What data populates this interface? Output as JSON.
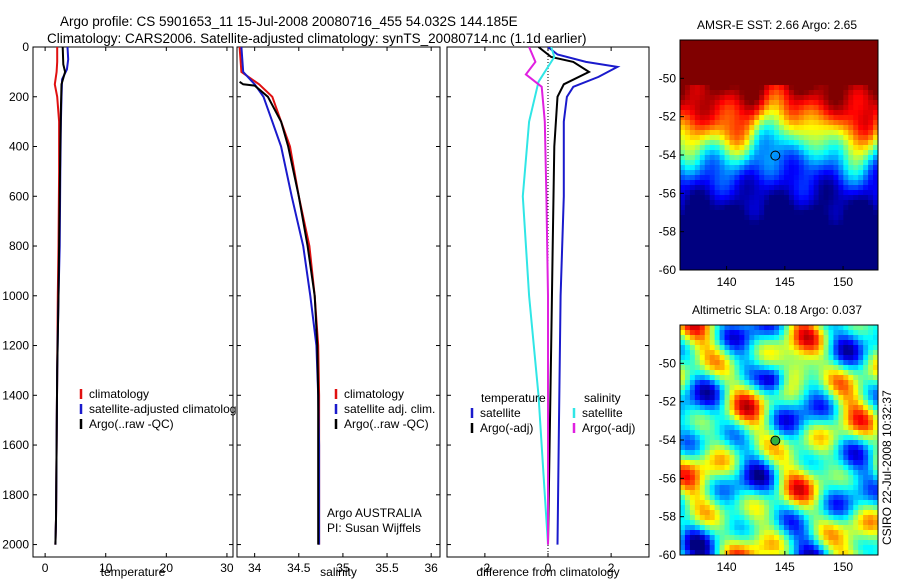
{
  "header": {
    "title_line1": "Argo profile: CS 5901653_11 15-Jul-2008 20080716_455 54.032S 144.185E",
    "title_line2": "Climatology: CARS2006. Satellite-adjusted climatology: synTS_20080714.nc (1.1d earlier)"
  },
  "footer": {
    "stamp": "CSIRO 22-Jul-2008 10:32:37"
  },
  "colors": {
    "red": "#e01010",
    "blue": "#1a1acc",
    "black": "#000000",
    "cyan": "#30e6e6",
    "magenta": "#e020e0"
  },
  "chart_data": [
    {
      "type": "line",
      "id": "temperature",
      "xlabel": "temperature",
      "ylabel": "",
      "xlim": [
        -2,
        31
      ],
      "ylim": [
        0,
        2050
      ],
      "y_reversed": true,
      "xticks": [
        0,
        10,
        20,
        30
      ],
      "yticks": [
        0,
        200,
        400,
        600,
        800,
        1000,
        1200,
        1400,
        1600,
        1800,
        2000
      ],
      "legend": [
        "climatology",
        "satellite-adjusted climatology",
        "Argo(..raw -QC)"
      ],
      "series": [
        {
          "name": "climatology",
          "color": "red",
          "points": [
            [
              2.0,
              0
            ],
            [
              2.0,
              60
            ],
            [
              1.9,
              100
            ],
            [
              1.6,
              150
            ],
            [
              2.0,
              200
            ],
            [
              2.3,
              300
            ],
            [
              2.3,
              500
            ],
            [
              2.2,
              800
            ],
            [
              2.1,
              1000
            ],
            [
              2.0,
              1300
            ],
            [
              1.9,
              1600
            ],
            [
              1.8,
              1900
            ],
            [
              1.7,
              2000
            ]
          ]
        },
        {
          "name": "satellite-adjusted climatology",
          "color": "blue",
          "points": [
            [
              3.7,
              0
            ],
            [
              3.8,
              50
            ],
            [
              3.6,
              90
            ],
            [
              2.8,
              130
            ],
            [
              2.7,
              200
            ],
            [
              2.6,
              300
            ],
            [
              2.5,
              500
            ],
            [
              2.4,
              800
            ],
            [
              2.2,
              1000
            ],
            [
              2.0,
              1300
            ],
            [
              1.9,
              1600
            ],
            [
              1.8,
              1900
            ],
            [
              1.7,
              2000
            ]
          ]
        },
        {
          "name": "Argo(..raw -QC)",
          "color": "black",
          "points": [
            [
              2.9,
              0
            ],
            [
              3.0,
              70
            ],
            [
              3.3,
              100
            ],
            [
              2.7,
              150
            ],
            [
              2.6,
              250
            ],
            [
              2.5,
              400
            ],
            [
              2.4,
              600
            ],
            [
              2.3,
              800
            ],
            [
              2.2,
              1000
            ],
            [
              2.0,
              1300
            ],
            [
              1.9,
              1600
            ],
            [
              1.8,
              1900
            ],
            [
              1.7,
              2000
            ]
          ]
        }
      ]
    },
    {
      "type": "line",
      "id": "salinity",
      "xlabel": "salinity",
      "ylabel": "",
      "xlim": [
        33.8,
        36.1
      ],
      "ylim": [
        0,
        2050
      ],
      "y_reversed": true,
      "xticks": [
        34,
        34.5,
        35,
        35.5,
        36
      ],
      "legend": [
        "climatology",
        "satellite adj. clim.",
        "Argo(..raw -QC)"
      ],
      "annotations": [
        "Argo AUSTRALIA",
        "PI: Susan Wijffels"
      ],
      "series": [
        {
          "name": "climatology",
          "color": "red",
          "points": [
            [
              33.83,
              0
            ],
            [
              33.85,
              100
            ],
            [
              34.05,
              150
            ],
            [
              34.2,
              200
            ],
            [
              34.3,
              300
            ],
            [
              34.4,
              400
            ],
            [
              34.5,
              600
            ],
            [
              34.62,
              800
            ],
            [
              34.68,
              1000
            ],
            [
              34.72,
              1200
            ],
            [
              34.73,
              1400
            ],
            [
              34.73,
              1600
            ],
            [
              34.73,
              2000
            ]
          ]
        },
        {
          "name": "satellite adj. clim.",
          "color": "blue",
          "points": [
            [
              33.85,
              0
            ],
            [
              33.87,
              100
            ],
            [
              34.0,
              150
            ],
            [
              34.1,
              200
            ],
            [
              34.2,
              300
            ],
            [
              34.3,
              400
            ],
            [
              34.42,
              600
            ],
            [
              34.55,
              800
            ],
            [
              34.63,
              1000
            ],
            [
              34.7,
              1200
            ],
            [
              34.72,
              1400
            ],
            [
              34.73,
              1600
            ],
            [
              34.73,
              2000
            ]
          ]
        },
        {
          "name": "Argo(..raw -QC)",
          "color": "black",
          "points": [
            [
              33.83,
              140
            ],
            [
              33.87,
              150
            ],
            [
              34.0,
              155
            ],
            [
              34.15,
              200
            ],
            [
              34.3,
              300
            ],
            [
              34.38,
              400
            ],
            [
              34.5,
              600
            ],
            [
              34.6,
              800
            ],
            [
              34.68,
              1000
            ],
            [
              34.71,
              1200
            ],
            [
              34.72,
              1400
            ],
            [
              34.72,
              1600
            ],
            [
              34.72,
              2000
            ]
          ]
        }
      ]
    },
    {
      "type": "line",
      "id": "difference",
      "xlabel": "difference from climatology",
      "ylabel": "",
      "xlim": [
        -3.2,
        3.2
      ],
      "ylim": [
        0,
        2050
      ],
      "y_reversed": true,
      "xticks": [
        -2,
        0,
        2
      ],
      "legend": [
        "temperature",
        "satellite",
        "Argo(-adj)",
        "salinity",
        "satellite",
        "Argo(-adj)"
      ],
      "series": [
        {
          "name": "temperature satellite",
          "color": "blue",
          "points": [
            [
              0.0,
              0
            ],
            [
              0.3,
              30
            ],
            [
              1.2,
              60
            ],
            [
              2.2,
              80
            ],
            [
              1.6,
              120
            ],
            [
              0.8,
              160
            ],
            [
              0.6,
              200
            ],
            [
              0.5,
              300
            ],
            [
              0.5,
              600
            ],
            [
              0.4,
              1000
            ],
            [
              0.35,
              1500
            ],
            [
              0.3,
              2000
            ]
          ]
        },
        {
          "name": "temperature Argo(-adj)",
          "color": "black",
          "points": [
            [
              -0.3,
              0
            ],
            [
              0.1,
              40
            ],
            [
              0.8,
              60
            ],
            [
              1.3,
              100
            ],
            [
              0.5,
              150
            ],
            [
              0.3,
              200
            ],
            [
              0.2,
              400
            ],
            [
              0.15,
              800
            ],
            [
              0.1,
              1200
            ],
            [
              0.05,
              1600
            ],
            [
              0.0,
              2000
            ]
          ]
        },
        {
          "name": "salinity satellite",
          "color": "cyan",
          "points": [
            [
              0.1,
              0
            ],
            [
              0.2,
              40
            ],
            [
              -0.3,
              140
            ],
            [
              -0.6,
              300
            ],
            [
              -0.8,
              600
            ],
            [
              -0.6,
              1000
            ],
            [
              -0.3,
              1400
            ],
            [
              -0.1,
              1800
            ],
            [
              0.0,
              2000
            ]
          ]
        },
        {
          "name": "salinity Argo(-adj)",
          "color": "magenta",
          "points": [
            [
              -0.6,
              0
            ],
            [
              -0.4,
              60
            ],
            [
              -0.7,
              110
            ],
            [
              -0.2,
              160
            ],
            [
              -0.1,
              300
            ],
            [
              -0.05,
              600
            ],
            [
              0.0,
              1000
            ],
            [
              0.0,
              2000
            ]
          ]
        }
      ]
    },
    {
      "type": "heatmap",
      "id": "sst",
      "title": "AMSR-E SST: 2.66 Argo: 2.65",
      "xlim": [
        136,
        153
      ],
      "ylim": [
        -60,
        -48
      ],
      "xticks": [
        140,
        145,
        150
      ],
      "yticks": [
        -50,
        -52,
        -54,
        -56,
        -58,
        -60
      ],
      "marker": [
        144.185,
        -54.032
      ],
      "marker_fill": "none"
    },
    {
      "type": "heatmap",
      "id": "sla",
      "title": "Altimetric SLA: 0.18 Argo: 0.037",
      "xlim": [
        136,
        153
      ],
      "ylim": [
        -60,
        -48
      ],
      "xticks": [
        140,
        145,
        150
      ],
      "yticks": [
        -50,
        -52,
        -54,
        -56,
        -58,
        -60
      ],
      "marker": [
        144.185,
        -54.032
      ],
      "marker_fill": "#30b040"
    }
  ]
}
